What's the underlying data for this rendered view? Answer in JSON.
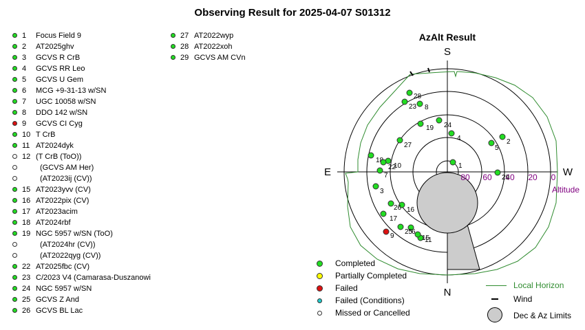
{
  "title": "Observing Result for 2025-04-07  S01312",
  "colors": {
    "completed": "#22dd22",
    "partial": "#ffff00",
    "failed": "#dd1111",
    "failed_cond": "#22cccc",
    "missed": "#ffffff",
    "horizon": "#2e8b2e",
    "altitude": "#800080"
  },
  "targets_left": [
    {
      "n": "1",
      "name": "Focus Field 9",
      "status": "completed"
    },
    {
      "n": "2",
      "name": "AT2025ghv",
      "status": "completed"
    },
    {
      "n": "3",
      "name": "GCVS R CrB",
      "status": "completed"
    },
    {
      "n": "4",
      "name": "GCVS RR Leo",
      "status": "completed"
    },
    {
      "n": "5",
      "name": "GCVS U Gem",
      "status": "completed"
    },
    {
      "n": "6",
      "name": "MCG +9-31-13 w/SN",
      "status": "completed"
    },
    {
      "n": "7",
      "name": "UGC 10058 w/SN",
      "status": "completed"
    },
    {
      "n": "8",
      "name": "DDO 142 w/SN",
      "status": "completed"
    },
    {
      "n": "9",
      "name": "GCVS CI Cyg",
      "status": "failed"
    },
    {
      "n": "10",
      "name": "T CrB",
      "status": "completed"
    },
    {
      "n": "11",
      "name": "AT2024dyk",
      "status": "completed"
    },
    {
      "n": "12",
      "name": " (T CrB (ToO))",
      "status": "missed"
    },
    {
      "n": "",
      "name": "(GCVS AM Her)",
      "status": "missed"
    },
    {
      "n": "",
      "name": "(AT2023ij (CV))",
      "status": "missed"
    },
    {
      "n": "15",
      "name": "AT2023yvv (CV)",
      "status": "completed"
    },
    {
      "n": "16",
      "name": "AT2022pix (CV)",
      "status": "completed"
    },
    {
      "n": "17",
      "name": "AT2023acim",
      "status": "completed"
    },
    {
      "n": "18",
      "name": "AT2024rbf",
      "status": "completed"
    },
    {
      "n": "19",
      "name": "NGC 5957 w/SN (ToO)",
      "status": "completed"
    },
    {
      "n": "",
      "name": "(AT2024hr (CV))",
      "status": "missed"
    },
    {
      "n": "",
      "name": "(AT2022qyg (CV))",
      "status": "missed"
    },
    {
      "n": "22",
      "name": "AT2025fbc (CV)",
      "status": "completed"
    },
    {
      "n": "23",
      "name": "C/2023 V4 (Camarasa-Duszanowi",
      "status": "completed"
    },
    {
      "n": "24",
      "name": "NGC 5957 w/SN",
      "status": "completed"
    },
    {
      "n": "25",
      "name": "GCVS Z And",
      "status": "completed"
    },
    {
      "n": "26",
      "name": "GCVS BL Lac",
      "status": "completed"
    }
  ],
  "targets_right": [
    {
      "n": "27",
      "name": "AT2022wyp",
      "status": "completed"
    },
    {
      "n": "28",
      "name": "AT2022xoh",
      "status": "completed"
    },
    {
      "n": "29",
      "name": "GCVS AM CVn",
      "status": "completed"
    }
  ],
  "plot": {
    "title": "AzAlt Result",
    "dir_s": "S",
    "dir_n": "N",
    "dir_e": "E",
    "dir_w": "W",
    "alt_ticks": [
      "80",
      "60",
      "40",
      "20",
      "0"
    ],
    "alt_label": "Altitude",
    "points": [
      {
        "label": "1",
        "status": "completed"
      },
      {
        "label": "2",
        "status": "completed"
      },
      {
        "label": "3",
        "status": "completed"
      },
      {
        "label": "4",
        "status": "completed"
      },
      {
        "label": "5",
        "status": "completed"
      },
      {
        "label": "6",
        "status": "completed"
      },
      {
        "label": "7",
        "status": "completed"
      },
      {
        "label": "8",
        "status": "completed"
      },
      {
        "label": "9",
        "status": "failed"
      },
      {
        "label": "10",
        "status": "completed"
      },
      {
        "label": "11",
        "status": "completed"
      },
      {
        "label": "15",
        "status": "completed"
      },
      {
        "label": "16",
        "status": "completed"
      },
      {
        "label": "17",
        "status": "completed"
      },
      {
        "label": "18",
        "status": "completed"
      },
      {
        "label": "19",
        "status": "completed"
      },
      {
        "label": "22",
        "status": "completed"
      },
      {
        "label": "23",
        "status": "completed"
      },
      {
        "label": "24",
        "status": "completed"
      },
      {
        "label": "25",
        "status": "completed"
      },
      {
        "label": "26",
        "status": "completed"
      },
      {
        "label": "27",
        "status": "completed"
      },
      {
        "label": "28",
        "status": "completed"
      },
      {
        "label": "29",
        "status": "completed"
      }
    ]
  },
  "legend": {
    "completed": "Completed",
    "partial": "Partially Completed",
    "failed": "Failed",
    "failed_cond": "Failed (Conditions)",
    "missed": "Missed or Cancelled",
    "horizon": "Local Horizon",
    "wind": "Wind",
    "limits": "Dec & Az Limits"
  }
}
